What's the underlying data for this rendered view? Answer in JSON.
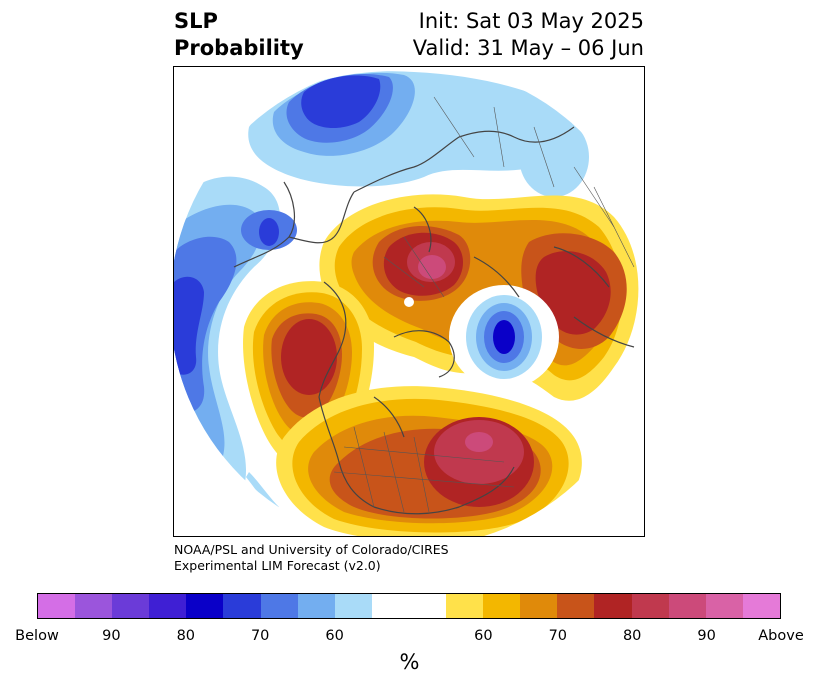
{
  "title": {
    "left_line1": "SLP",
    "left_line2": "Probability",
    "right_line1": "Init: Sat 03 May 2025",
    "right_line2": "Valid: 31 May – 06 Jun"
  },
  "credit": {
    "line1": "NOAA/PSL and University of Colorado/CIRES",
    "line2": "Experimental LIM Forecast (v2.0)"
  },
  "colorbar": {
    "unit": "%",
    "segments": [
      {
        "color": "#d46ee6"
      },
      {
        "color": "#9b55dc"
      },
      {
        "color": "#6b3bd8"
      },
      {
        "color": "#3f1fd4"
      },
      {
        "color": "#0a00c8"
      },
      {
        "color": "#2a3cd9"
      },
      {
        "color": "#4e78e6"
      },
      {
        "color": "#73aef0"
      },
      {
        "color": "#a9dbf8"
      },
      {
        "color": "#ffffff"
      },
      {
        "color": "#ffe14a"
      },
      {
        "color": "#f3b700"
      },
      {
        "color": "#e08a0a"
      },
      {
        "color": "#c8541a"
      },
      {
        "color": "#b02424"
      },
      {
        "color": "#c0394e"
      },
      {
        "color": "#cc4a7a"
      },
      {
        "color": "#d962a6"
      },
      {
        "color": "#e57ad8"
      }
    ],
    "ticks": [
      "Below",
      "90",
      "80",
      "70",
      "60",
      "60",
      "70",
      "80",
      "90",
      "Above"
    ]
  },
  "map": {
    "colors": {
      "blue_light": "#a9dbf8",
      "blue_mid": "#73aef0",
      "blue_med": "#4e78e6",
      "blue_dark": "#2a3cd9",
      "blue_deep": "#0a00c8",
      "yellow": "#ffe14a",
      "gold": "#f3b700",
      "orange": "#e08a0a",
      "burnt": "#c8541a",
      "red": "#b02424",
      "crimson": "#c0394e",
      "pink": "#cc4a7a",
      "coast": "#444444"
    }
  }
}
